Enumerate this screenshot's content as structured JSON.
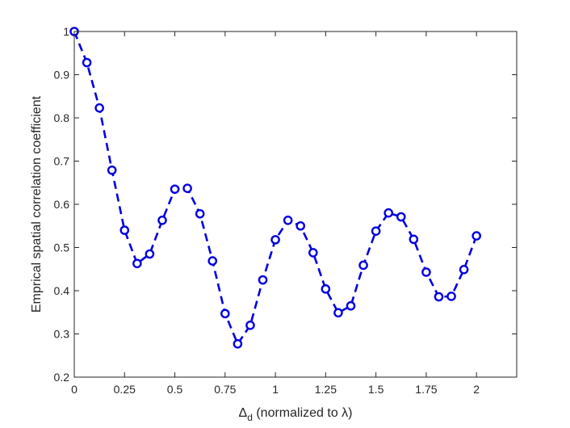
{
  "chart_data": {
    "type": "line",
    "title": "",
    "xlabel_parts": {
      "main": "Δ",
      "subscript": "d",
      "rest": " (normalized to λ)"
    },
    "ylabel": "Emprical spatial correlation coefficient",
    "xlim": [
      0,
      2.2
    ],
    "ylim": [
      0.2,
      1
    ],
    "x_ticks": [
      0,
      0.25,
      0.5,
      0.75,
      1,
      1.25,
      1.5,
      1.75,
      2
    ],
    "x_tick_labels": [
      "0",
      "0.25",
      "0.5",
      "0.75",
      "1",
      "1.25",
      "1.5",
      "1.75",
      "2"
    ],
    "y_ticks": [
      0.2,
      0.3,
      0.4,
      0.5,
      0.6,
      0.7,
      0.8,
      0.9,
      1
    ],
    "y_tick_labels": [
      "0.2",
      "0.3",
      "0.4",
      "0.5",
      "0.6",
      "0.7",
      "0.8",
      "0.9",
      "1"
    ],
    "grid": false,
    "line_style": "dashed",
    "marker": "circle-open",
    "series": [
      {
        "color": "#0000e0",
        "x": [
          0,
          0.0625,
          0.125,
          0.1875,
          0.25,
          0.3125,
          0.375,
          0.4375,
          0.5,
          0.5625,
          0.625,
          0.6875,
          0.75,
          0.8125,
          0.875,
          0.9375,
          1.0,
          1.0625,
          1.125,
          1.1875,
          1.25,
          1.3125,
          1.375,
          1.4375,
          1.5,
          1.5625,
          1.625,
          1.6875,
          1.75,
          1.8125,
          1.875,
          1.9375,
          2.0
        ],
        "y": [
          1.0,
          0.928,
          0.823,
          0.679,
          0.54,
          0.463,
          0.485,
          0.563,
          0.635,
          0.637,
          0.578,
          0.469,
          0.347,
          0.277,
          0.32,
          0.425,
          0.518,
          0.563,
          0.55,
          0.488,
          0.404,
          0.349,
          0.365,
          0.459,
          0.538,
          0.58,
          0.571,
          0.519,
          0.443,
          0.386,
          0.387,
          0.449,
          0.527
        ]
      }
    ]
  }
}
